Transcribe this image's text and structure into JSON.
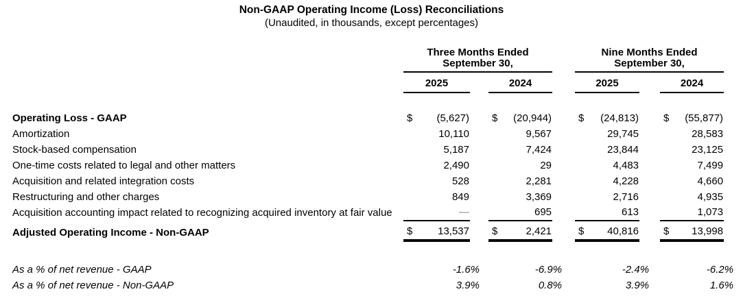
{
  "title": "Non-GAAP Operating Income (Loss) Reconciliations",
  "subtitle": "(Unaudited, in thousands, except percentages)",
  "table": {
    "dollar_symbol": "$",
    "em_dash": "—",
    "col_groups": [
      {
        "line1": "Three Months Ended",
        "line2": "September 30,"
      },
      {
        "line1": "Nine Months Ended",
        "line2": "September 30,"
      }
    ],
    "years": [
      "2025",
      "2024",
      "2025",
      "2024"
    ],
    "rows": [
      {
        "label": "Operating Loss - GAAP",
        "bold": true,
        "dollar": true,
        "values": [
          "(5,627)",
          "(20,944)",
          "(24,813)",
          "(55,877)"
        ]
      },
      {
        "label": "Amortization",
        "values": [
          "10,110",
          "9,567",
          "29,745",
          "28,583"
        ]
      },
      {
        "label": "Stock-based compensation",
        "values": [
          "5,187",
          "7,424",
          "23,844",
          "23,125"
        ]
      },
      {
        "label": "One-time costs related to legal and other matters",
        "values": [
          "2,490",
          "29",
          "4,483",
          "7,499"
        ]
      },
      {
        "label": "Acquisition and related integration costs",
        "values": [
          "528",
          "2,281",
          "4,228",
          "4,660"
        ]
      },
      {
        "label": "Restructuring and other charges",
        "values": [
          "849",
          "3,369",
          "2,716",
          "4,935"
        ]
      },
      {
        "label": "Acquisition accounting impact related to recognizing acquired inventory at fair value",
        "rule_below": true,
        "values": [
          "—",
          "695",
          "613",
          "1,073"
        ]
      },
      {
        "label": "Adjusted Operating Income - Non-GAAP",
        "bold": true,
        "dollar": true,
        "total": true,
        "values": [
          "13,537",
          "2,421",
          "40,816",
          "13,998"
        ]
      }
    ],
    "pct_rows": [
      {
        "label": "As a % of net revenue - GAAP",
        "values": [
          "-1.6%",
          "-6.9%",
          "-2.4%",
          "-6.2%"
        ]
      },
      {
        "label": "As a % of net revenue - Non-GAAP",
        "values": [
          "3.9%",
          "0.8%",
          "3.9%",
          "1.6%"
        ]
      }
    ]
  },
  "colors": {
    "text": "#000000",
    "dash_gray": "#808080",
    "background": "#ffffff"
  }
}
